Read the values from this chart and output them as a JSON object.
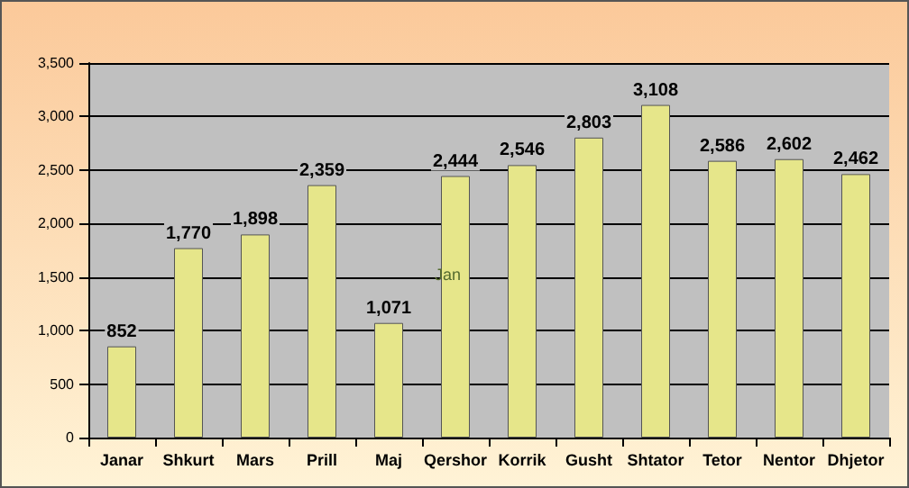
{
  "chart_data": {
    "type": "bar",
    "categories": [
      "Janar",
      "Shkurt",
      "Mars",
      "Prill",
      "Maj",
      "Qershor",
      "Korrik",
      "Gusht",
      "Shtator",
      "Tetor",
      "Nentor",
      "Dhjetor"
    ],
    "values": [
      852,
      1770,
      1898,
      2359,
      1071,
      2444,
      2546,
      2803,
      3108,
      2586,
      2602,
      2462
    ],
    "value_labels": [
      "852",
      "1,770",
      "1,898",
      "2,359",
      "1,071",
      "2,444",
      "2,546",
      "2,803",
      "3,108",
      "2,586",
      "2,602",
      "2,462"
    ],
    "color": "#e6e68a",
    "ylim": [
      0,
      3500
    ],
    "yticks": [
      0,
      {
        "value": 500,
        "label": "500"
      },
      {
        "value": 1000,
        "label": "1,000"
      },
      {
        "value": 1500,
        "label": "1,500"
      },
      {
        "value": 2000,
        "label": "2,000"
      },
      {
        "value": 2500,
        "label": "2,500"
      },
      {
        "value": 3000,
        "label": "3,000"
      },
      {
        "value": 3500,
        "label": "3,500"
      }
    ],
    "grid": "y",
    "annotations": [
      "Jan"
    ]
  }
}
